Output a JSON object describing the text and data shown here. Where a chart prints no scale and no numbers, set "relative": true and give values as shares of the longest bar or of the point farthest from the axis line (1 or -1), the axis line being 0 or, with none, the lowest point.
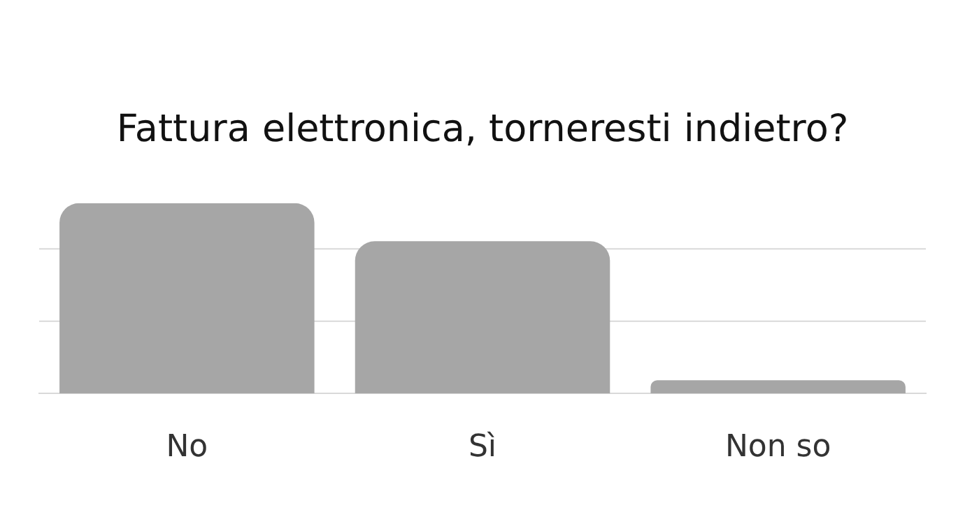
{
  "chart_data": {
    "type": "bar",
    "title": "Fattura elettronica, torneresti indietro?",
    "categories": [
      "No",
      "Sì",
      "Non so"
    ],
    "values": [
      1,
      0.8,
      0.07
    ],
    "color": "#a6a6a6",
    "relative": true,
    "legend": false,
    "ref_lines": [
      {
        "axis": "y",
        "value": 0.38,
        "color": "#d9d9d9"
      },
      {
        "axis": "y",
        "value": 0.76,
        "color": "#d9d9d9"
      }
    ]
  }
}
